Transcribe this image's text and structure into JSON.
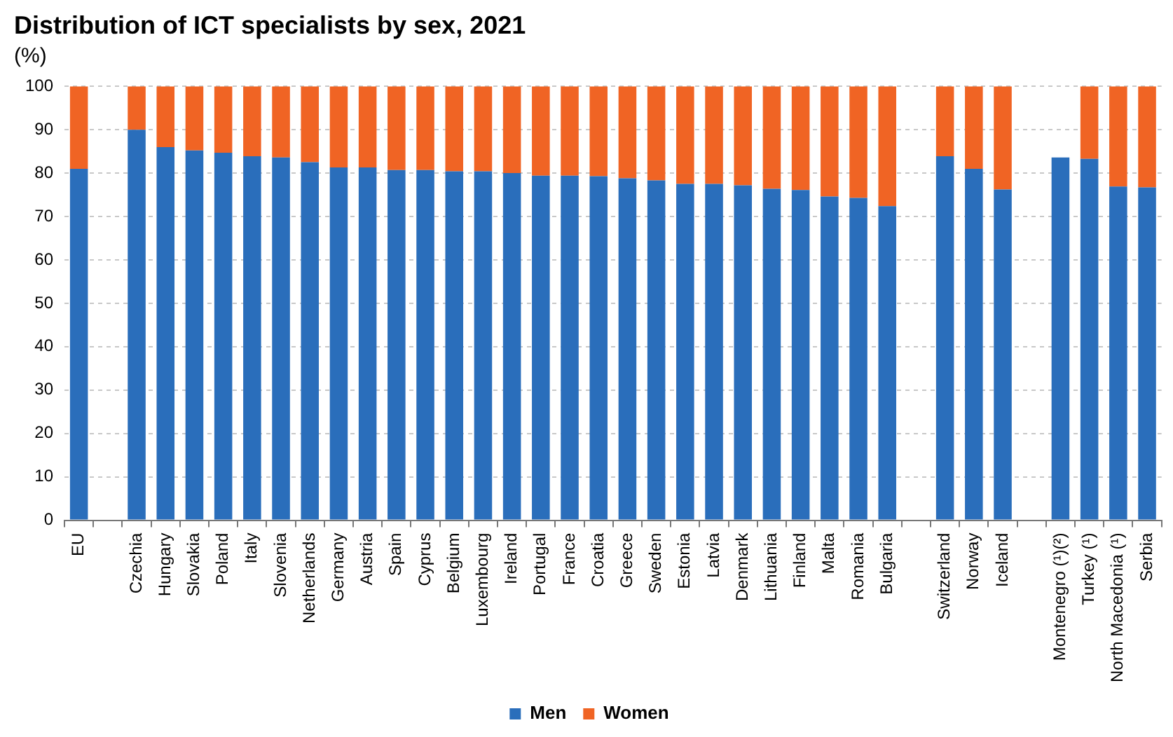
{
  "chart_data": {
    "type": "bar",
    "title": "Distribution of ICT specialists by sex, 2021",
    "subtitle": "(%)",
    "categories": [
      "EU",
      null,
      "Czechia",
      "Hungary",
      "Slovakia",
      "Poland",
      "Italy",
      "Slovenia",
      "Netherlands",
      "Germany",
      "Austria",
      "Spain",
      "Cyprus",
      "Belgium",
      "Luxembourg",
      "Ireland",
      "Portugal",
      "France",
      "Croatia",
      "Greece",
      "Sweden",
      "Estonia",
      "Latvia",
      "Denmark",
      "Lithuania",
      "Finland",
      "Malta",
      "Romania",
      "Bulgaria",
      null,
      "Switzerland",
      "Norway",
      "Iceland",
      null,
      "Montenegro (¹)(²)",
      "Turkey (¹)",
      "North Macedonia (¹)",
      "Serbia"
    ],
    "series": [
      {
        "name": "Men",
        "color": "#2a6ebb",
        "values": [
          81.0,
          null,
          90.0,
          86.0,
          85.2,
          84.7,
          83.9,
          83.6,
          82.5,
          81.3,
          81.3,
          80.7,
          80.7,
          80.4,
          80.4,
          80.0,
          79.4,
          79.4,
          79.3,
          78.8,
          78.3,
          77.5,
          77.5,
          77.2,
          76.4,
          76.1,
          74.6,
          74.3,
          72.4,
          null,
          83.9,
          81.0,
          76.2,
          null,
          83.6,
          83.3,
          76.9,
          76.7
        ]
      },
      {
        "name": "Women",
        "color": "#f06424",
        "values": [
          19.0,
          null,
          10.0,
          14.0,
          14.8,
          15.3,
          16.1,
          16.4,
          17.5,
          18.7,
          18.7,
          19.3,
          19.3,
          19.6,
          19.6,
          20.0,
          20.6,
          20.6,
          20.7,
          21.2,
          21.7,
          22.5,
          22.5,
          22.8,
          23.6,
          23.9,
          25.4,
          25.7,
          27.6,
          null,
          16.1,
          19.0,
          23.8,
          null,
          null,
          16.7,
          23.1,
          23.3
        ]
      }
    ],
    "stacked": true,
    "ylim": [
      0,
      100
    ],
    "yticks": [
      0,
      10,
      20,
      30,
      40,
      50,
      60,
      70,
      80,
      90,
      100
    ],
    "grid": "y",
    "legend": "bottom"
  }
}
